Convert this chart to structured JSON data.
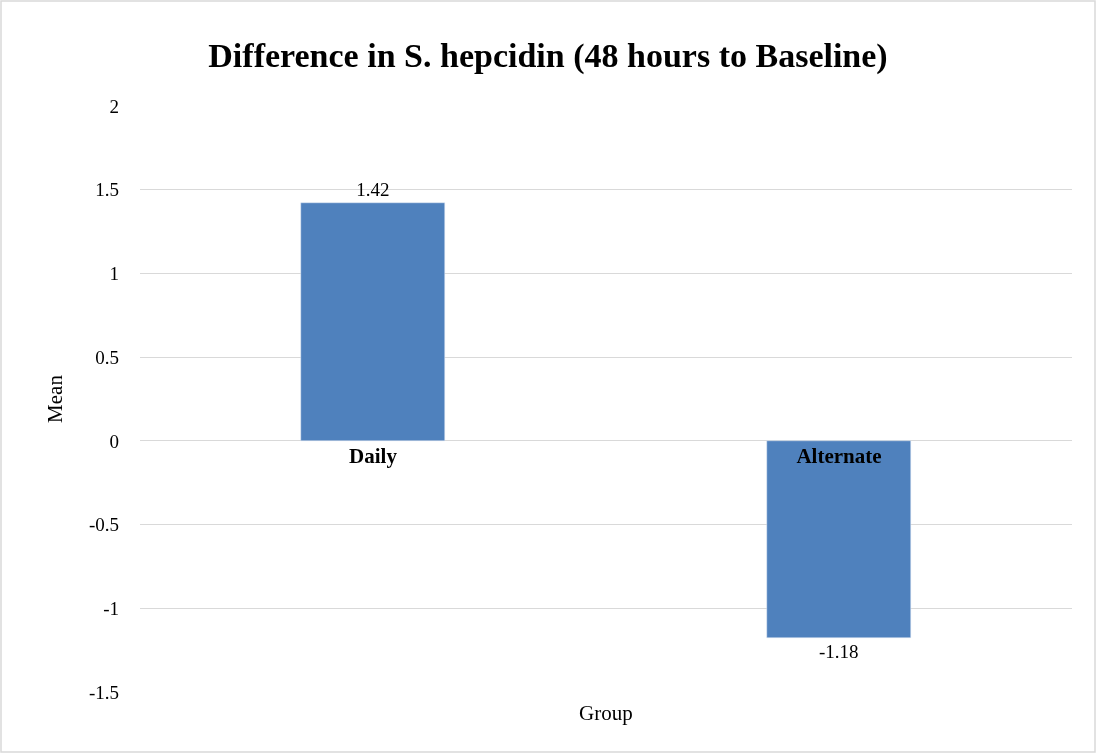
{
  "chart_data": {
    "type": "bar",
    "title": "Difference in S. hepcidin (48 hours to Baseline)",
    "xlabel": "Group",
    "ylabel": "Mean",
    "categories": [
      "Daily",
      "Alternate"
    ],
    "values": [
      1.42,
      -1.18
    ],
    "color": "#4f81bd",
    "data_labels": true,
    "ylim": [
      -1.5,
      2
    ],
    "yticks": [
      -1.5,
      -1,
      -0.5,
      0,
      0.5,
      1,
      1.5,
      2
    ],
    "grid": "y",
    "legend": false
  }
}
